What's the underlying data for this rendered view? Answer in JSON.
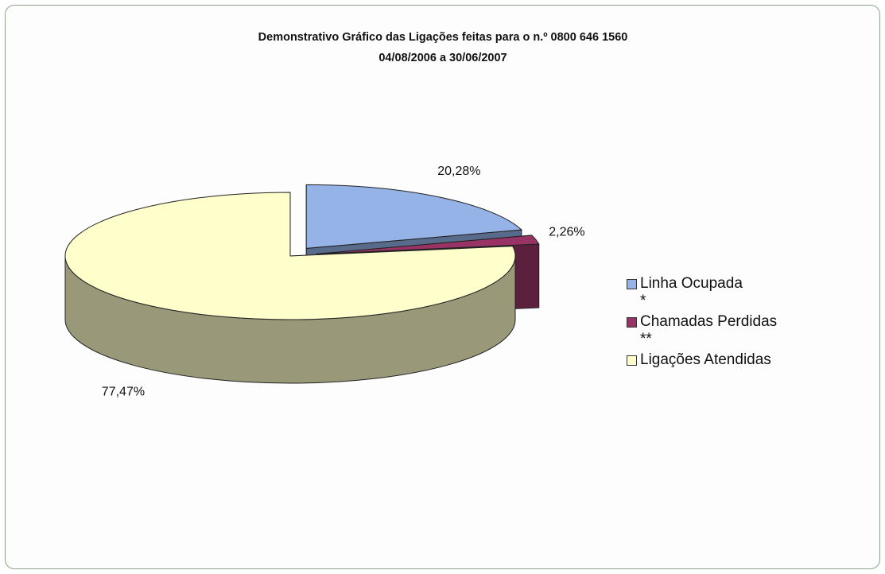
{
  "chart_data": {
    "type": "pie",
    "title": "Demonstrativo Gráfico das Ligações feitas para o n.º 0800 646 1560",
    "subtitle": "04/08/2006 a 30/06/2007",
    "categories": [
      "Linha Ocupada\n*",
      "Chamadas Perdidas\n**",
      "Ligações Atendidas"
    ],
    "values": [
      20.28,
      2.26,
      77.47
    ],
    "value_labels": [
      "20,28%",
      "2,26%",
      "77,47%"
    ],
    "colors": [
      "#95b3e6",
      "#993366",
      "#ffffcc"
    ],
    "exploded": [
      true,
      true,
      false
    ]
  }
}
